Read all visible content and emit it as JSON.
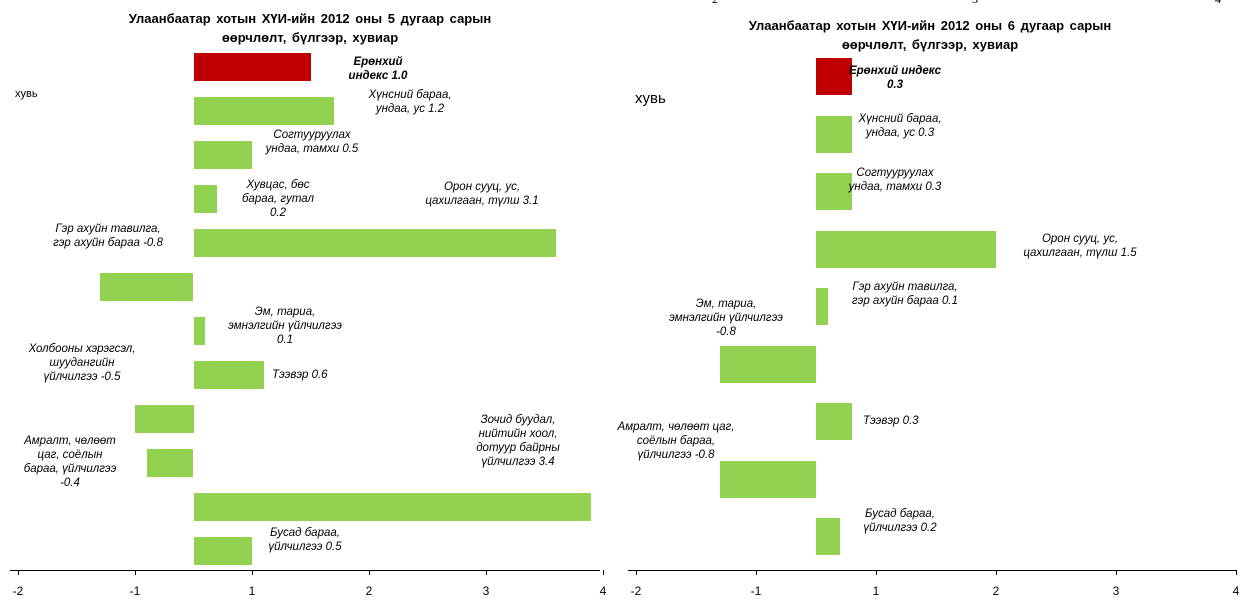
{
  "header_fragments": [
    "2",
    "3",
    "4"
  ],
  "chart_data": [
    {
      "type": "bar",
      "orientation": "horizontal",
      "title": "Улаанбаатар хотын ХҮИ-ийн 2012 оны 5 дугаар сарын\nөөрчлөлт, бүлгээр, хувиар",
      "y_label": "хувь",
      "categories": [
        "Ерөнхий индекс",
        "Хүнсний бараа, ундаа, ус",
        "Согтууруулах ундаа, тамхи",
        "Хувцас, бөс бараа, гутал",
        "Орон сууц, ус, цахилгаан, түлш",
        "Гэр ахуйн тавилга, гэр ахуйн бараа",
        "Эм, тариа, эмнэлгийн үйлчилгээ",
        "Тээвэр",
        "Холбооны хэрэгсэл, шуудангийн үйлчилгээ",
        "Амралт, чөлөөт цаг, соёлын бараа, үйлчилгээ",
        "Зочид буудал, нийтийн хоол, дотуур байрны үйлчилгээ",
        "Бусад бараа, үйлчилгээ"
      ],
      "values": [
        1.0,
        1.2,
        0.5,
        0.2,
        3.1,
        -0.8,
        0.1,
        0.6,
        -0.5,
        -0.4,
        3.4,
        0.5
      ],
      "value_labels": [
        "1.0",
        "1.2",
        "0.5",
        "0.2",
        "3.1",
        "-0.8",
        "0.1",
        "0.6",
        "-0.5",
        "-0.4",
        "3.4",
        "0.5"
      ],
      "colors": [
        "#c00000",
        "#92d050",
        "#92d050",
        "#92d050",
        "#92d050",
        "#92d050",
        "#92d050",
        "#92d050",
        "#92d050",
        "#92d050",
        "#92d050",
        "#92d050"
      ],
      "xlim": [
        -1.5,
        3.5
      ],
      "xticks": [
        {
          "value": -1.5,
          "label": "-2"
        },
        {
          "value": -0.5,
          "label": "-1"
        },
        {
          "value": 0.5,
          "label": "1"
        },
        {
          "value": 1.5,
          "label": "2"
        },
        {
          "value": 2.5,
          "label": "3"
        },
        {
          "value": 3.5,
          "label": "4"
        }
      ]
    },
    {
      "type": "bar",
      "orientation": "horizontal",
      "title": "Улаанбаатар хотын ХҮИ-ийн 2012 оны 6 дугаар сарын\nөөрчлөлт, бүлгээр, хувиар",
      "y_label": "хувь",
      "categories": [
        "Ерөнхий индекс",
        "Хүнсний бараа, ундаа, ус",
        "Согтууруулах ундаа, тамхи",
        "Орон сууц, ус, цахилгаан, түлш",
        "Гэр ахуйн тавилга, гэр ахуйн бараа",
        "Эм, тариа, эмнэлгийн үйлчилгээ",
        "Тээвэр",
        "Амралт, чөлөөт цаг, соёлын бараа, үйлчилгээ",
        "Бусад бараа, үйлчилгээ"
      ],
      "values": [
        0.3,
        0.3,
        0.3,
        1.5,
        0.1,
        -0.8,
        0.3,
        -0.8,
        0.2
      ],
      "colors": [
        "#c00000",
        "#92d050",
        "#92d050",
        "#92d050",
        "#92d050",
        "#92d050",
        "#92d050",
        "#92d050",
        "#92d050"
      ],
      "xlim": [
        -1.5,
        3.5
      ],
      "xticks": [
        {
          "value": -1.5,
          "label": "-2"
        },
        {
          "value": -0.5,
          "label": "-1"
        },
        {
          "value": 0.5,
          "label": "1"
        },
        {
          "value": 1.5,
          "label": "2"
        },
        {
          "value": 2.5,
          "label": "3"
        },
        {
          "value": 3.5,
          "label": "4"
        }
      ]
    }
  ]
}
